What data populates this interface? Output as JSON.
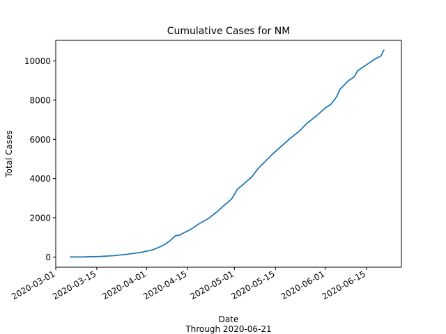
{
  "chart_data": {
    "type": "line",
    "title": "Cumulative Cases for NM",
    "xlabel": "Date",
    "subtitle": "Through 2020-06-21",
    "ylabel": "Total Cases",
    "x_ticks": [
      "2020-03-01",
      "2020-03-15",
      "2020-04-01",
      "2020-04-15",
      "2020-05-01",
      "2020-05-15",
      "2020-06-01",
      "2020-06-15"
    ],
    "y_ticks": [
      0,
      2000,
      4000,
      6000,
      8000,
      10000
    ],
    "xlim": [
      "2020-03-01",
      "2020-06-27"
    ],
    "ylim": [
      -520,
      11050
    ],
    "grid": false,
    "colors": {
      "line": "#1f77b4"
    },
    "series": [
      {
        "x": [
          "2020-03-06",
          "2020-03-11",
          "2020-03-16",
          "2020-03-21",
          "2020-03-26",
          "2020-03-31",
          "2020-04-01",
          "2020-04-03",
          "2020-04-05",
          "2020-04-07",
          "2020-04-09",
          "2020-04-11",
          "2020-04-12",
          "2020-04-14",
          "2020-04-16",
          "2020-04-19",
          "2020-04-22",
          "2020-04-25",
          "2020-04-28",
          "2020-04-30",
          "2020-05-02",
          "2020-05-04",
          "2020-05-07",
          "2020-05-09",
          "2020-05-11",
          "2020-05-14",
          "2020-05-17",
          "2020-05-20",
          "2020-05-23",
          "2020-05-26",
          "2020-05-29",
          "2020-06-01",
          "2020-06-03",
          "2020-06-05",
          "2020-06-06",
          "2020-06-09",
          "2020-06-11",
          "2020-06-12",
          "2020-06-15",
          "2020-06-18",
          "2020-06-20",
          "2020-06-21"
        ],
        "values": [
          0,
          5,
          25,
          70,
          150,
          260,
          300,
          360,
          480,
          620,
          830,
          1100,
          1100,
          1250,
          1400,
          1700,
          1950,
          2300,
          2700,
          2950,
          3450,
          3700,
          4100,
          4500,
          4800,
          5250,
          5650,
          6050,
          6400,
          6850,
          7200,
          7600,
          7800,
          8200,
          8550,
          9000,
          9200,
          9500,
          9800,
          10100,
          10250,
          10550
        ]
      }
    ]
  }
}
